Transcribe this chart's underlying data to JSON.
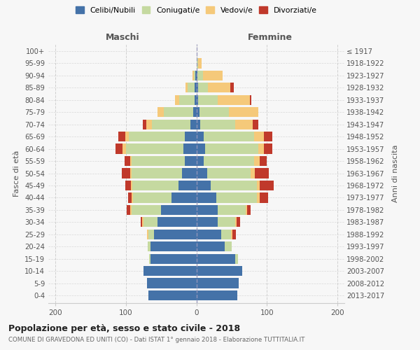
{
  "age_groups": [
    "100+",
    "95-99",
    "90-94",
    "85-89",
    "80-84",
    "75-79",
    "70-74",
    "65-69",
    "60-64",
    "55-59",
    "50-54",
    "45-49",
    "40-44",
    "35-39",
    "30-34",
    "25-29",
    "20-24",
    "15-19",
    "10-14",
    "5-9",
    "0-4"
  ],
  "birth_years": [
    "≤ 1917",
    "1918-1922",
    "1923-1927",
    "1928-1932",
    "1933-1937",
    "1938-1942",
    "1943-1947",
    "1948-1952",
    "1953-1957",
    "1958-1962",
    "1963-1967",
    "1968-1972",
    "1973-1977",
    "1978-1982",
    "1983-1987",
    "1988-1992",
    "1993-1997",
    "1998-2002",
    "2003-2007",
    "2008-2012",
    "2013-2017"
  ],
  "maschi_celibi": [
    0,
    0,
    1,
    2,
    2,
    4,
    8,
    16,
    18,
    16,
    20,
    25,
    35,
    50,
    55,
    60,
    65,
    65,
    75,
    70,
    68
  ],
  "maschi_coniugati": [
    0,
    0,
    2,
    10,
    22,
    42,
    55,
    80,
    82,
    76,
    72,
    66,
    55,
    42,
    20,
    8,
    4,
    2,
    0,
    0,
    0
  ],
  "maschi_vedovi": [
    0,
    0,
    2,
    3,
    6,
    9,
    8,
    5,
    5,
    2,
    2,
    2,
    2,
    2,
    2,
    2,
    0,
    0,
    0,
    0,
    0
  ],
  "maschi_divorziati": [
    0,
    0,
    0,
    0,
    0,
    0,
    5,
    10,
    10,
    8,
    12,
    8,
    5,
    5,
    2,
    0,
    0,
    0,
    0,
    0,
    0
  ],
  "femmine_nubili": [
    0,
    0,
    1,
    2,
    2,
    4,
    5,
    10,
    12,
    10,
    15,
    20,
    28,
    30,
    30,
    35,
    40,
    55,
    65,
    60,
    58
  ],
  "femmine_coniugate": [
    0,
    2,
    8,
    14,
    28,
    42,
    50,
    72,
    76,
    72,
    62,
    66,
    58,
    40,
    25,
    14,
    10,
    4,
    0,
    0,
    0
  ],
  "femmine_vedove": [
    0,
    5,
    28,
    32,
    46,
    42,
    25,
    14,
    8,
    8,
    6,
    4,
    4,
    2,
    2,
    2,
    0,
    0,
    0,
    0,
    0
  ],
  "femmine_divorziate": [
    0,
    0,
    0,
    5,
    2,
    0,
    8,
    12,
    12,
    10,
    20,
    20,
    12,
    5,
    5,
    5,
    0,
    0,
    0,
    0,
    0
  ],
  "color_celibi": "#4472a8",
  "color_coniugati": "#c5d9a0",
  "color_vedovi": "#f5c97a",
  "color_divorziati": "#c0392b",
  "xlim": 210,
  "title": "Popolazione per età, sesso e stato civile - 2018",
  "subtitle": "COMUNE DI GRAVEDONA ED UNITI (CO) - Dati ISTAT 1° gennaio 2018 - Elaborazione TUTTITALIA.IT",
  "ylabel": "Fasce di età",
  "ylabel_right": "Anni di nascita",
  "legend_labels": [
    "Celibi/Nubili",
    "Coniugati/e",
    "Vedovi/e",
    "Divorziati/e"
  ],
  "maschi_label": "Maschi",
  "femmine_label": "Femmine",
  "bg_color": "#f7f7f7"
}
